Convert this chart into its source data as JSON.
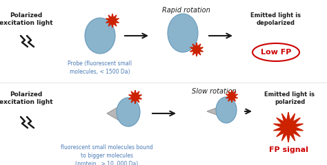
{
  "bg_color": "#ffffff",
  "arrow_color": "#1a1a1a",
  "ellipse_color": "#8ab4cc",
  "protein_color": "#b8b8b8",
  "text_color_black": "#1a1a1a",
  "text_color_blue": "#4a7ab5",
  "text_color_red": "#cc0000",
  "spark_color": "#cc2200",
  "label_rapid": "Rapid rotation",
  "label_slow": "Slow rotation",
  "label_excite": "Polarized\nexcitation light",
  "label_probe": "Probe (fluorescent small\nmolecules, < 1500 Da)",
  "label_bound": "fluorescent small molecules bound\nto bigger molecules\n(protein,  > 10, 000 Da)",
  "label_emit_top": "Emitted light is\ndepolarized",
  "label_emit_bot": "Emitted light is\npolarized",
  "label_low_fp": "Low FP",
  "label_fp_signal": "FP signal",
  "figw": 4.74,
  "figh": 2.4,
  "dpi": 100
}
